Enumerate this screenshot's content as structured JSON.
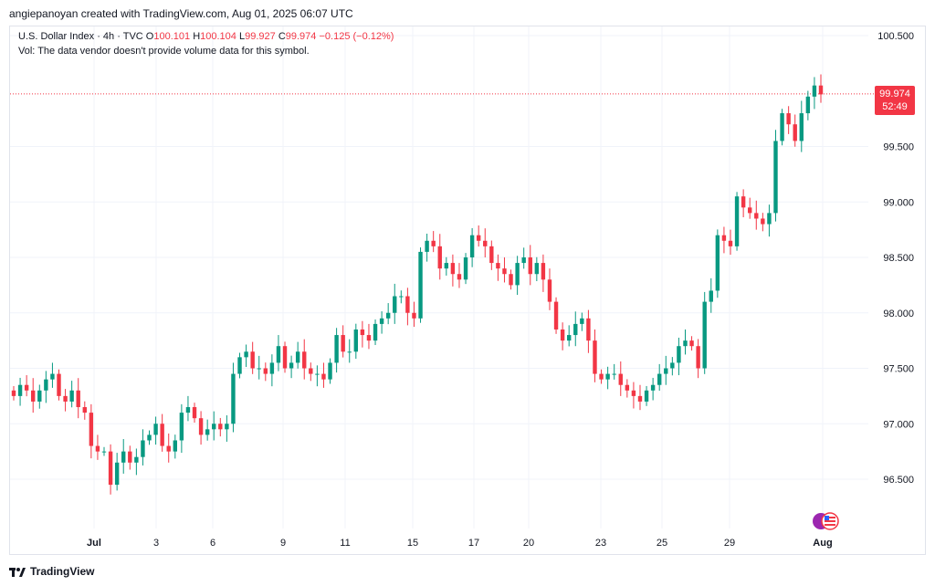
{
  "header": {
    "credit": "angiepanoyan created with TradingView.com, Aug 01, 2025 06:07 UTC"
  },
  "legend": {
    "symbol": "U.S. Dollar Index · 4h · TVC",
    "open_label": "O",
    "open": "100.101",
    "high_label": "H",
    "high": "100.104",
    "low_label": "L",
    "low": "99.927",
    "close_label": "C",
    "close": "99.974",
    "change": "−0.125 (−0.12%)",
    "volume_note": "Vol: The data vendor doesn't provide volume data for this symbol."
  },
  "price_tag": {
    "price": "99.974",
    "countdown": "52:49"
  },
  "footer": {
    "brand": "TradingView"
  },
  "colors": {
    "up": "#089981",
    "down": "#f23645",
    "grid": "#f0f3fa"
  },
  "icons": [
    "tradingview-logo-icon",
    "us-flag-icon"
  ],
  "chart_data": {
    "type": "candlestick",
    "title": "U.S. Dollar Index · 4h · TVC",
    "ylim": [
      96.0,
      100.7
    ],
    "y_ticks": [
      "100.500",
      "99.500",
      "99.000",
      "98.500",
      "98.000",
      "97.500",
      "97.000",
      "96.500"
    ],
    "x_ticks": [
      "Jul",
      "3",
      "6",
      "9",
      "11",
      "15",
      "17",
      "20",
      "23",
      "25",
      "29",
      "Aug"
    ],
    "grid": true,
    "current_price_line": 99.974,
    "closes": [
      97.25,
      97.35,
      97.3,
      97.2,
      97.3,
      97.4,
      97.45,
      97.25,
      97.2,
      97.3,
      97.15,
      97.1,
      96.8,
      96.75,
      96.75,
      96.45,
      96.65,
      96.75,
      96.65,
      96.7,
      96.85,
      96.9,
      97.0,
      96.8,
      96.75,
      96.85,
      97.1,
      97.15,
      97.05,
      96.9,
      96.95,
      97.0,
      96.95,
      97.0,
      97.45,
      97.6,
      97.65,
      97.5,
      97.5,
      97.45,
      97.55,
      97.7,
      97.5,
      97.55,
      97.65,
      97.5,
      97.45,
      97.45,
      97.4,
      97.55,
      97.8,
      97.65,
      97.65,
      97.85,
      97.8,
      97.75,
      97.9,
      97.95,
      98.0,
      98.15,
      98.15,
      98.0,
      97.95,
      98.55,
      98.65,
      98.6,
      98.4,
      98.45,
      98.35,
      98.3,
      98.5,
      98.7,
      98.65,
      98.6,
      98.45,
      98.4,
      98.35,
      98.25,
      98.45,
      98.5,
      98.35,
      98.45,
      98.3,
      98.1,
      97.85,
      97.75,
      97.8,
      97.9,
      97.95,
      97.75,
      97.45,
      97.4,
      97.45,
      97.45,
      97.35,
      97.3,
      97.25,
      97.2,
      97.3,
      97.35,
      97.45,
      97.5,
      97.55,
      97.7,
      97.75,
      97.7,
      97.5,
      98.1,
      98.2,
      98.7,
      98.65,
      98.6,
      99.05,
      98.95,
      98.9,
      98.85,
      98.8,
      98.9,
      99.55,
      99.8,
      99.7,
      99.55,
      99.8,
      99.95,
      100.05,
      99.97
    ],
    "series_note": "4h OHLC candles, green = up, red = down"
  }
}
